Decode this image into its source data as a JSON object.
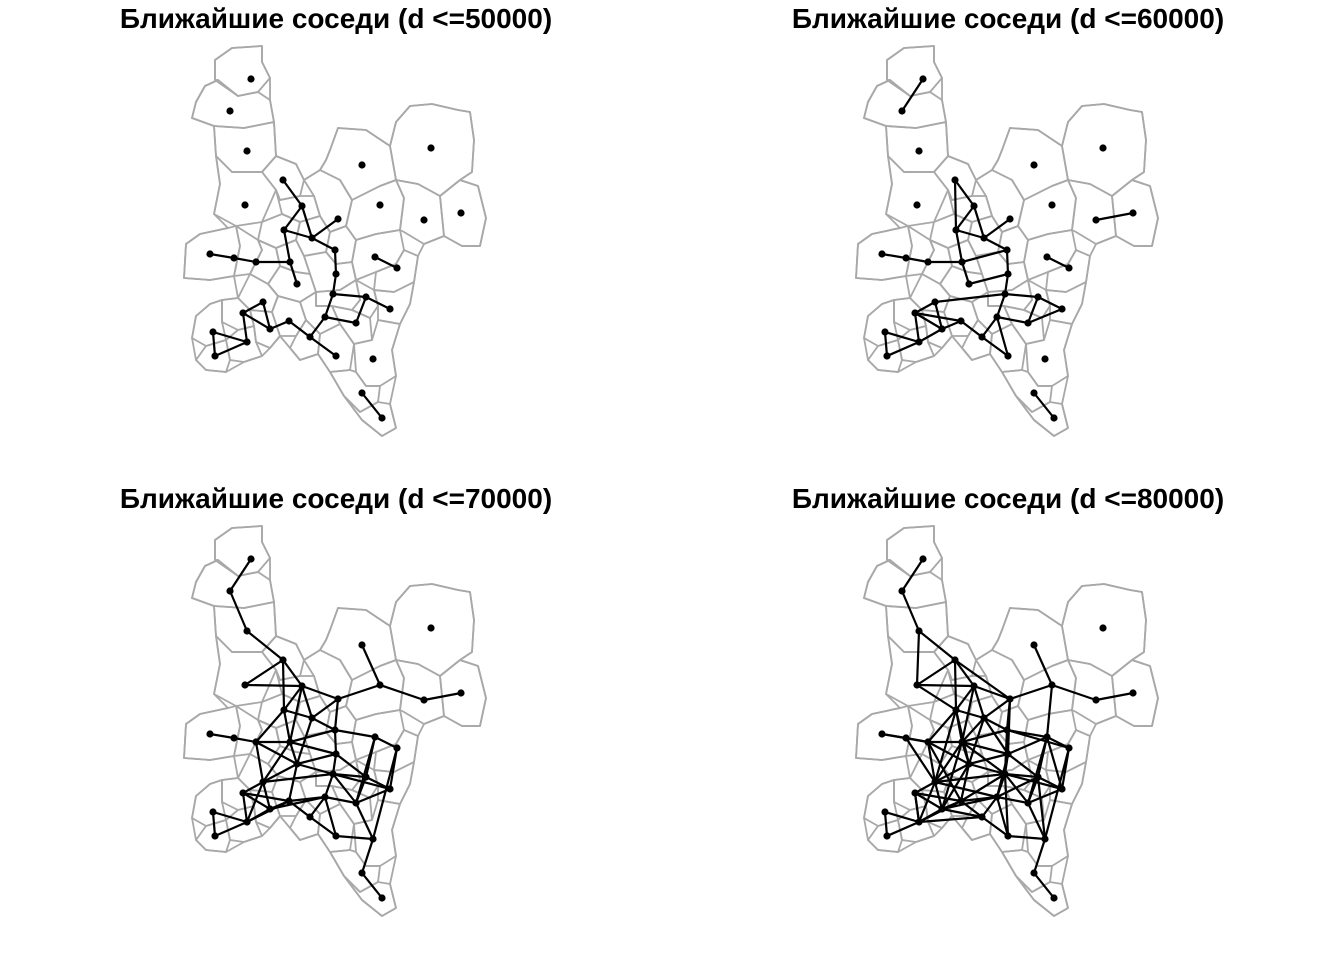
{
  "panels": [
    {
      "title": "Ближайшие соседи (d <=50000)"
    },
    {
      "title": "Ближайшие соседи (d <=60000)"
    },
    {
      "title": "Ближайшие соседи (d <=70000)"
    },
    {
      "title": "Ближайшие соседи (d <=80000)"
    }
  ],
  "colors": {
    "boundary": "#a8a8a8",
    "edge": "#000000",
    "point": "#000000"
  }
}
